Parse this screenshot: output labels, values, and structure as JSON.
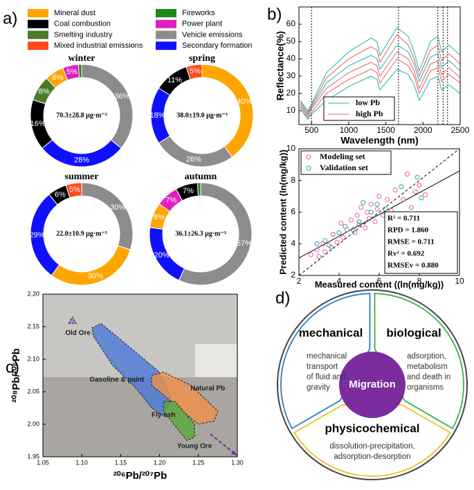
{
  "panel_labels": [
    "a)",
    "b)",
    "c)",
    "d)"
  ],
  "legend": {
    "names": [
      "Mineral dust",
      "Coal combustion",
      "Smelting industry",
      "Mixed industrial emissions",
      "Fireworks",
      "Power plant",
      "Vehicle emissions",
      "Secondary formation"
    ],
    "colors": [
      "#ffa500",
      "#000000",
      "#4a7a2a",
      "#ff4a1a",
      "#1a8a1a",
      "#e020c0",
      "#8c8c8c",
      "#1010ff"
    ]
  },
  "chart_data": [
    {
      "type": "pie",
      "title": "winter",
      "center_label": "70.3±28.8 μg·m⁻³",
      "categories": [
        "Vehicle emissions",
        "Secondary formation",
        "Coal combustion",
        "Smelting industry",
        "Mineral dust",
        "Power plant",
        "Fireworks"
      ],
      "values": [
        36,
        28,
        16,
        8,
        6,
        5,
        1
      ],
      "value_labels": [
        "36%",
        "28%",
        "16%",
        "8%",
        "6%",
        "5%",
        null
      ]
    },
    {
      "type": "pie",
      "title": "spring",
      "center_label": "38.0±19.0 μg·m⁻³",
      "categories": [
        "Mineral dust",
        "Vehicle emissions",
        "Secondary formation",
        "Coal combustion",
        "Mixed industrial emissions"
      ],
      "values": [
        40,
        26,
        18,
        11,
        5
      ],
      "value_labels": [
        "40%",
        "26%",
        "18%",
        "11%",
        "5%"
      ]
    },
    {
      "type": "pie",
      "title": "summer",
      "center_label": "22.0±10.9 μg·m⁻³",
      "categories": [
        "Vehicle emissions",
        "Mineral dust",
        "Secondary formation",
        "Coal combustion",
        "Mixed industrial emissions"
      ],
      "values": [
        30,
        30,
        29,
        6,
        5
      ],
      "value_labels": [
        "30%",
        "30%",
        "29%",
        "6%",
        "5%"
      ]
    },
    {
      "type": "pie",
      "title": "autumn",
      "center_label": "36.1±26.3 μg·m⁻³",
      "categories": [
        "Vehicle emissions",
        "Secondary formation",
        "Mineral dust",
        "Power plant",
        "Coal combustion",
        "Fireworks"
      ],
      "values": [
        57,
        20,
        8,
        7,
        7,
        1
      ],
      "value_labels": [
        "57%",
        "20%",
        "8%",
        "7%",
        "7%",
        null
      ]
    },
    {
      "type": "line",
      "xlabel": "Wavelength (nm)",
      "ylabel": "Reflectance(%)",
      "xlim": [
        330,
        2500
      ],
      "ylim": [
        2,
        70
      ],
      "xticks": [
        500,
        1000,
        1500,
        2000,
        2500
      ],
      "yticks": [
        10,
        20,
        30,
        40,
        50,
        60
      ],
      "vlines": [
        500,
        1670,
        2200,
        2270,
        2330
      ],
      "x": [
        350,
        450,
        500,
        700,
        1000,
        1300,
        1380,
        1420,
        1650,
        1800,
        1880,
        1950,
        2100,
        2200,
        2250,
        2350,
        2500
      ],
      "series": [
        {
          "name": "low Pb",
          "color": "#20b0b0",
          "values": [
            16,
            10,
            14,
            32,
            44,
            52,
            50,
            42,
            58,
            53,
            44,
            33,
            50,
            53,
            44,
            48,
            42
          ]
        },
        {
          "name": "low Pb",
          "color": "#20b0b0",
          "values": [
            14,
            8,
            12,
            26,
            36,
            42,
            40,
            34,
            48,
            44,
            37,
            27,
            41,
            43,
            35,
            39,
            33
          ]
        },
        {
          "name": "low Pb",
          "color": "#20b0b0",
          "values": [
            11,
            5,
            8,
            16,
            24,
            30,
            28,
            22,
            34,
            31,
            25,
            16,
            28,
            30,
            22,
            25,
            20
          ]
        },
        {
          "name": "high Pb",
          "color": "#e06060",
          "values": [
            15,
            9,
            13,
            29,
            40,
            47,
            45,
            38,
            54,
            48,
            40,
            30,
            45,
            48,
            39,
            43,
            37
          ]
        },
        {
          "name": "high Pb",
          "color": "#e06060",
          "values": [
            13,
            7,
            11,
            23,
            32,
            38,
            36,
            30,
            44,
            40,
            33,
            23,
            37,
            39,
            31,
            35,
            29
          ]
        },
        {
          "name": "high Pb",
          "color": "#e06060",
          "values": [
            12,
            6,
            9,
            20,
            28,
            34,
            32,
            26,
            40,
            36,
            30,
            20,
            33,
            35,
            27,
            31,
            26
          ]
        }
      ]
    },
    {
      "type": "scatter",
      "xlabel": "Measured content ((ln(mg/kg))",
      "ylabel": "Predicted content (ln(mg/kg))",
      "xlim": [
        2,
        10
      ],
      "ylim": [
        2,
        10
      ],
      "xticks": [
        2,
        4,
        6,
        8,
        10
      ],
      "yticks": [
        2,
        4,
        6,
        8,
        10
      ],
      "series": [
        {
          "name": "Modeling set",
          "color": "#e0609a",
          "x": [
            2.6,
            2.9,
            3.0,
            3.2,
            3.3,
            3.5,
            3.7,
            3.9,
            4.1,
            4.2,
            4.4,
            4.6,
            4.8,
            4.9,
            5.0,
            5.1,
            5.3,
            5.4,
            5.5,
            5.6,
            5.8,
            5.9,
            6.0,
            6.2,
            6.4,
            6.6,
            6.8,
            7.0,
            7.2,
            7.4,
            7.6,
            7.8,
            8.0,
            8.3
          ],
          "y": [
            3.3,
            3.6,
            3.2,
            4.0,
            3.5,
            3.9,
            4.6,
            4.1,
            5.3,
            4.4,
            4.9,
            5.5,
            4.7,
            5.8,
            5.2,
            6.3,
            5.0,
            6.0,
            5.6,
            6.5,
            5.4,
            6.2,
            7.0,
            5.8,
            6.8,
            6.1,
            7.4,
            5.9,
            6.8,
            8.4,
            6.3,
            7.3,
            7.7,
            7.1
          ]
        },
        {
          "name": "Validation set",
          "color": "#20a8b0",
          "x": [
            2.9,
            3.3,
            3.6,
            4.0,
            4.3,
            4.7,
            5.0,
            5.2,
            5.6,
            5.9,
            6.3,
            7.1,
            7.9,
            8.1
          ],
          "y": [
            4.0,
            4.2,
            3.8,
            4.7,
            5.1,
            4.9,
            5.4,
            6.6,
            6.0,
            6.5,
            6.2,
            7.6,
            8.2,
            6.9
          ]
        }
      ],
      "lines": [
        {
          "x": [
            2,
            10
          ],
          "y": [
            2,
            10
          ],
          "dashed": true
        },
        {
          "x": [
            2,
            10
          ],
          "y": [
            3.1,
            8.6
          ],
          "dashed": false
        }
      ],
      "stats": [
        "R² = 0.711",
        "RPD = 1.860",
        "RMSE = 0.711",
        "Rv² = 0.692",
        "RMSEv = 0.880"
      ]
    },
    {
      "type": "area",
      "xlabel": "²⁰⁶Pb/²⁰⁷Pb",
      "ylabel": "²⁰⁸Pb/²⁰⁶Pb",
      "xlim": [
        1.05,
        1.3
      ],
      "ylim": [
        1.95,
        2.2
      ],
      "xticks": [
        {
          "value": 1.05,
          "label": "1.05"
        },
        {
          "value": 1.1,
          "label": "1.10"
        },
        {
          "value": 1.15,
          "label": "1.15"
        },
        {
          "value": 1.2,
          "label": "1.20"
        },
        {
          "value": 1.25,
          "label": "1.25"
        },
        {
          "value": 1.3,
          "label": "1.30"
        }
      ],
      "yticks": [
        {
          "value": 1.95,
          "label": "1.95"
        },
        {
          "value": 2.0,
          "label": "2.00"
        },
        {
          "value": 2.05,
          "label": "2.05"
        },
        {
          "value": 2.1,
          "label": "2.10"
        },
        {
          "value": 2.15,
          "label": "2.15"
        },
        {
          "value": 2.2,
          "label": "2.20"
        }
      ],
      "regions": [
        {
          "name": "Gasoline & paint",
          "color": "#4a78d8",
          "label_x": 1.145,
          "label_y": 2.068,
          "x": [
            1.113,
            1.125,
            1.16,
            1.2,
            1.215,
            1.205,
            1.19,
            1.17,
            1.14,
            1.115
          ],
          "y": [
            2.148,
            2.155,
            2.12,
            2.08,
            2.04,
            2.013,
            2.025,
            2.055,
            2.09,
            2.135
          ]
        },
        {
          "name": "Natural Pb",
          "color": "#f0904a",
          "label_x": 1.262,
          "label_y": 2.055,
          "x": [
            1.19,
            1.205,
            1.24,
            1.275,
            1.27,
            1.25,
            1.22,
            1.19
          ],
          "y": [
            2.075,
            2.08,
            2.06,
            2.02,
            2.005,
            2.0,
            2.03,
            2.06
          ]
        },
        {
          "name": "Fly ash",
          "color": "#5aa83a",
          "label_x": 1.205,
          "label_y": 2.014,
          "x": [
            1.205,
            1.22,
            1.245,
            1.245,
            1.235,
            1.215,
            1.205
          ],
          "y": [
            2.035,
            2.035,
            2.0,
            1.98,
            1.975,
            2.005,
            2.02
          ]
        },
        {
          "name": "Old Ore",
          "color": "#9b6fd0",
          "label_x": 1.095,
          "label_y": 2.14,
          "x": [
            1.083,
            1.093,
            1.088
          ],
          "y": [
            2.155,
            2.155,
            2.165
          ]
        }
      ],
      "arrows": [
        {
          "name": "Young Ore",
          "color": "#7030a0",
          "label_x": 1.245,
          "label_y": 1.966,
          "x": [
            1.265,
            1.3
          ],
          "y": [
            1.985,
            1.952
          ]
        }
      ]
    }
  ],
  "diagram": {
    "center": "Migration",
    "sections": [
      {
        "title": "mechanical",
        "lines": [
          "mechanical",
          "transport",
          "of fluid and",
          "gravity"
        ]
      },
      {
        "title": "biological",
        "lines": [
          "adsorption,",
          "metabolism",
          "and death in",
          "organisms"
        ]
      },
      {
        "title": "physicochemical",
        "lines": [
          "dissolution-precipitation,",
          "adsorption-desorption"
        ]
      }
    ]
  }
}
